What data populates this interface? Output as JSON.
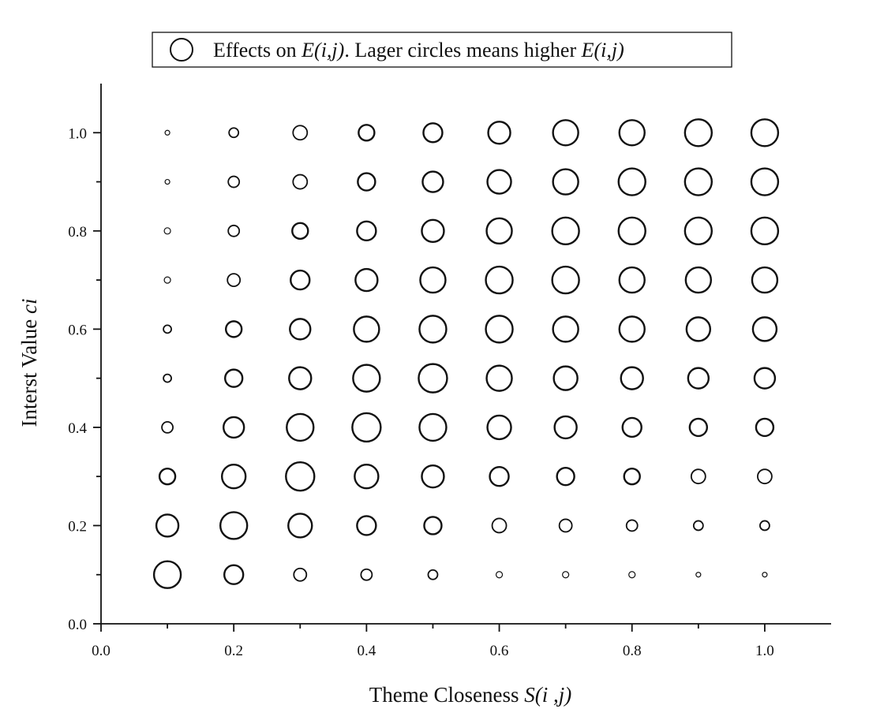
{
  "chart_data": {
    "type": "scatter",
    "subtype": "bubble",
    "legend": {
      "placement": "top-center",
      "marker": "circle",
      "label_parts": [
        {
          "text": "Effects on ",
          "italic": false
        },
        {
          "text": "E(i,j)",
          "italic": true
        },
        {
          "text": ". Lager circles means higher ",
          "italic": false
        },
        {
          "text": "E(i,j)",
          "italic": true
        }
      ]
    },
    "xlabel_parts": [
      {
        "text": "Theme Closeness ",
        "italic": false
      },
      {
        "text": "S(i ,j)",
        "italic": true
      }
    ],
    "ylabel_parts": [
      {
        "text": "Interst Value ",
        "italic": false
      },
      {
        "text": "ci",
        "italic": true
      }
    ],
    "xlim": [
      0.0,
      1.1
    ],
    "ylim": [
      0.0,
      1.1
    ],
    "x_ticks": [
      "0.0",
      "0.2",
      "0.4",
      "0.6",
      "0.8",
      "1.0"
    ],
    "y_ticks": [
      "0.0",
      "0.2",
      "0.4",
      "0.6",
      "0.8",
      "1.0"
    ],
    "grid": false,
    "x": [
      0.1,
      0.2,
      0.3,
      0.4,
      0.5,
      0.6,
      0.7,
      0.8,
      0.9,
      1.0
    ],
    "y": [
      0.1,
      0.2,
      0.3,
      0.4,
      0.5,
      0.6,
      0.7,
      0.8,
      0.9,
      1.0
    ],
    "effect_sizes_by_row": [
      [
        17,
        12,
        8,
        7,
        6,
        4,
        4,
        4,
        3,
        3
      ],
      [
        14,
        17,
        15,
        12,
        11,
        9,
        8,
        7,
        6,
        6
      ],
      [
        10,
        15,
        18,
        15,
        14,
        12,
        11,
        10,
        9,
        9
      ],
      [
        7,
        13,
        17,
        18,
        17,
        15,
        14,
        12,
        11,
        11
      ],
      [
        5,
        11,
        14,
        17,
        18,
        16,
        15,
        14,
        13,
        13
      ],
      [
        5,
        10,
        13,
        16,
        17,
        17,
        16,
        16,
        15,
        15
      ],
      [
        4,
        8,
        12,
        14,
        16,
        17,
        17,
        16,
        16,
        16
      ],
      [
        4,
        7,
        10,
        12,
        14,
        16,
        17,
        17,
        17,
        17
      ],
      [
        3,
        7,
        9,
        11,
        13,
        15,
        16,
        17,
        17,
        17
      ],
      [
        3,
        6,
        9,
        10,
        12,
        14,
        16,
        16,
        17,
        17
      ]
    ]
  }
}
